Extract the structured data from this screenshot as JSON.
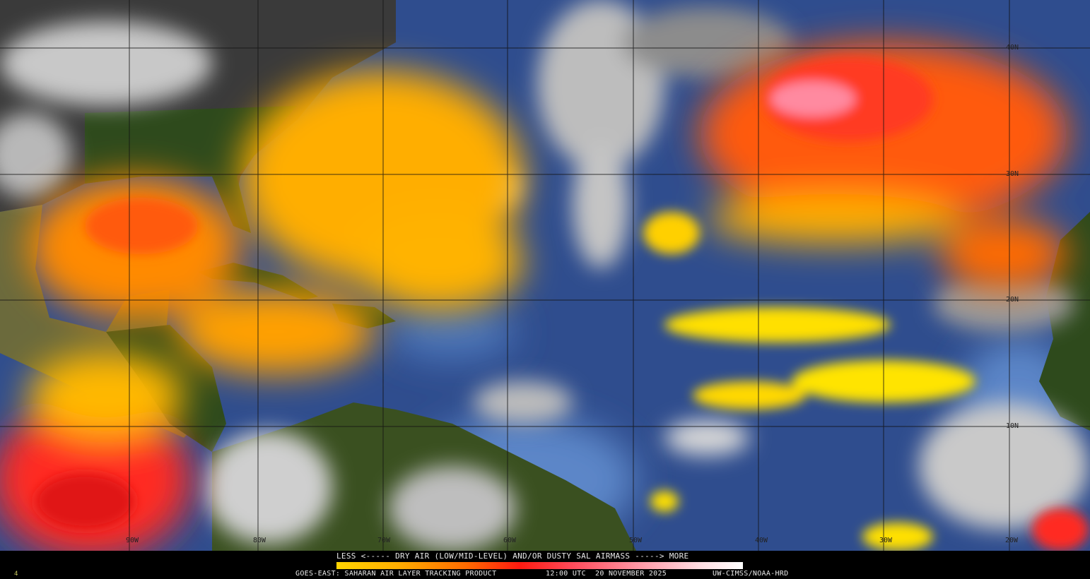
{
  "map": {
    "longitude_labels": [
      "90W",
      "80W",
      "70W",
      "60W",
      "50W",
      "40W",
      "30W",
      "20W"
    ],
    "latitude_labels": [
      "40N",
      "30N",
      "20N",
      "10N"
    ],
    "colors": {
      "ocean": "#2f4d8e",
      "land": "#2e4a1c",
      "cloud": "#c8c8c8",
      "dust_low": "#ffd400",
      "dust_mid": "#ff6a00",
      "dust_high": "#ff1a10",
      "dust_max": "#ffffff"
    }
  },
  "legend": {
    "scale_label": "LESS <----- DRY AIR (LOW/MID-LEVEL) AND/OR DUSTY SAL AIRMASS -----> MORE",
    "footer_product": "GOES-EAST: SAHARAN AIR LAYER TRACKING PRODUCT",
    "footer_time": "12:00 UTC",
    "footer_date": "20 NOVEMBER 2025",
    "footer_credit": "UW-CIMSS/NOAA-HRD",
    "corner_mark": "4"
  }
}
